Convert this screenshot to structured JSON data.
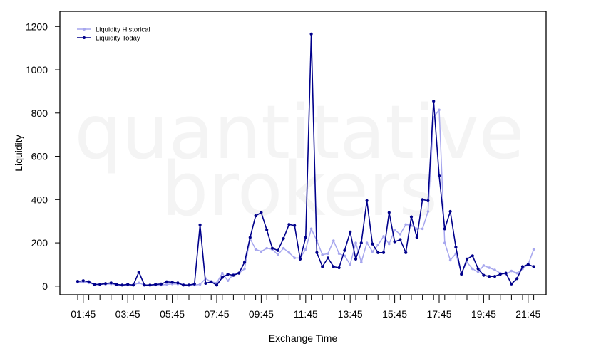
{
  "watermark": {
    "line1": "quantitative",
    "line2": "brokers"
  },
  "chart_data": {
    "type": "line",
    "title": "",
    "xlabel": "Exchange Time",
    "ylabel": "Liquidity",
    "ylim": [
      -40,
      1270
    ],
    "yticks": [
      0,
      200,
      400,
      600,
      800,
      1000,
      1200
    ],
    "xtick_labels": [
      "01:45",
      "03:45",
      "05:45",
      "07:45",
      "09:45",
      "11:45",
      "13:45",
      "15:45",
      "17:45",
      "19:45",
      "21:45"
    ],
    "x_label_interval": 8,
    "grid": false,
    "legend": "top-left",
    "series": [
      {
        "name": "Liquidity Historical",
        "color": "#a6a6ee",
        "values": [
          18,
          18,
          15,
          8,
          8,
          9,
          10,
          6,
          5,
          5,
          5,
          15,
          5,
          5,
          5,
          5,
          8,
          10,
          10,
          8,
          5,
          5,
          8,
          35,
          20,
          15,
          60,
          25,
          55,
          60,
          80,
          220,
          170,
          160,
          175,
          170,
          145,
          175,
          155,
          130,
          130,
          170,
          265,
          210,
          145,
          150,
          210,
          150,
          140,
          100,
          200,
          110,
          200,
          160,
          190,
          230,
          195,
          260,
          240,
          285,
          280,
          265,
          265,
          345,
          780,
          815,
          200,
          120,
          150,
          60,
          110,
          80,
          65,
          95,
          85,
          75,
          60,
          55,
          70,
          60,
          80,
          100,
          170
        ]
      },
      {
        "name": "Liquidity Today",
        "color": "#00008b",
        "values": [
          22,
          25,
          20,
          8,
          8,
          12,
          15,
          8,
          5,
          8,
          5,
          65,
          5,
          5,
          8,
          10,
          20,
          18,
          15,
          5,
          5,
          10,
          283,
          13,
          20,
          5,
          40,
          55,
          50,
          60,
          110,
          225,
          325,
          340,
          260,
          175,
          165,
          220,
          285,
          280,
          125,
          225,
          1165,
          155,
          90,
          130,
          90,
          85,
          165,
          250,
          125,
          200,
          395,
          195,
          155,
          155,
          340,
          205,
          215,
          155,
          320,
          225,
          400,
          395,
          855,
          510,
          265,
          345,
          180,
          55,
          125,
          140,
          80,
          50,
          45,
          45,
          55,
          60,
          10,
          35,
          90,
          100,
          90
        ]
      }
    ]
  }
}
